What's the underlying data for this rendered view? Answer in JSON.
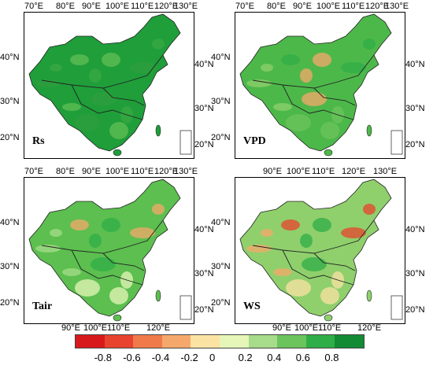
{
  "panels": [
    {
      "label": "Rs",
      "top_ticks": [
        "70°E",
        "80°E",
        "90°E",
        "100°E",
        "110°E",
        "120°E",
        "130°E"
      ],
      "bottom_ticks": [],
      "left_ticks": [
        "40°N",
        "30°N",
        "20°N"
      ],
      "right_ticks": [
        "40°N",
        "30°N",
        "20°N"
      ],
      "fill": "#1f9e3a"
    },
    {
      "label": "VPD",
      "top_ticks": [
        "70°E",
        "80°E",
        "90°E",
        "100°E",
        "110°E",
        "120°E",
        "130°E"
      ],
      "bottom_ticks": [],
      "left_ticks": [
        "40°N",
        "30°N",
        "20°N"
      ],
      "right_ticks": [
        "40°N",
        "30°N",
        "20°N"
      ],
      "fill": "#4db84a"
    },
    {
      "label": "Tair",
      "top_ticks": [
        "70°E",
        "80°E",
        "90°E",
        "100°E",
        "110°E",
        "120°E",
        "130°E"
      ],
      "bottom_ticks": [
        "90°E",
        "100°E",
        "110°E",
        "120°E"
      ],
      "left_ticks": [
        "40°N",
        "30°N",
        "20°N"
      ],
      "right_ticks": [
        "40°N",
        "30°N",
        "20°N"
      ],
      "fill": "#5cbf4f"
    },
    {
      "label": "WS",
      "top_ticks": [
        "90°E",
        "100°E",
        "110°E",
        "120°E",
        "130°E"
      ],
      "bottom_ticks": [
        "90°E",
        "100°E",
        "110°E",
        "120°E"
      ],
      "left_ticks": [
        "40°N",
        "30°N",
        "20°N"
      ],
      "right_ticks": [
        "40°N",
        "30°N",
        "20°N"
      ],
      "fill": "#8fd06c"
    }
  ],
  "colorbar": {
    "labels": [
      "-0.8",
      "-0.6",
      "-0.4",
      "-0.2",
      "0",
      "0.2",
      "0.4",
      "0.6",
      "0.8"
    ],
    "colors": [
      "#d7191c",
      "#e8432e",
      "#f07a4a",
      "#f5a86b",
      "#fbe3a4",
      "#e6f5b8",
      "#a6dc8a",
      "#6cc45c",
      "#2fae47",
      "#138a34"
    ]
  }
}
